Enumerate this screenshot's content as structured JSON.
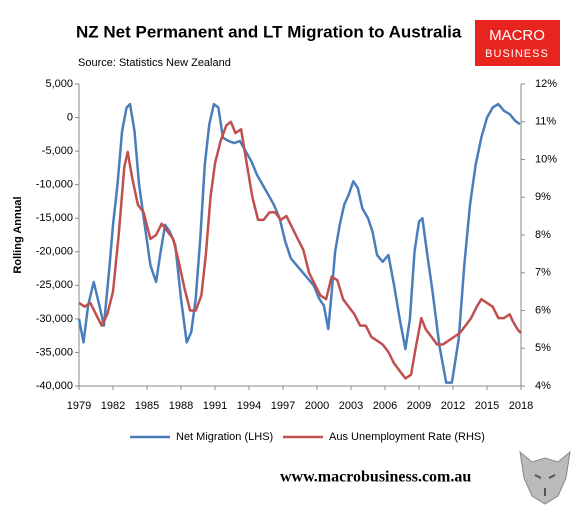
{
  "chart_data": {
    "type": "line",
    "title": "NZ Net Permanent and LT Migration to Australia",
    "subtitle": "Source: Statistics New Zealand",
    "ylabel": "Rolling Annual",
    "logo": [
      "MACRO",
      "BUSINESS"
    ],
    "footer": "www.macrobusiness.com.au",
    "xlim": [
      1979,
      2018
    ],
    "xticks": [
      1979,
      1982,
      1985,
      1988,
      1991,
      1994,
      1997,
      2000,
      2003,
      2006,
      2009,
      2012,
      2015,
      2018
    ],
    "ylim": [
      -40000,
      5000
    ],
    "yticks": [
      {
        "value": -40000,
        "label": "-40,000"
      },
      {
        "value": -35000,
        "label": "-35,000"
      },
      {
        "value": -30000,
        "label": "-30,000"
      },
      {
        "value": -25000,
        "label": "-25,000"
      },
      {
        "value": -20000,
        "label": "-20,000"
      },
      {
        "value": -15000,
        "label": "-15,000"
      },
      {
        "value": -10000,
        "label": "-10,000"
      },
      {
        "value": -5000,
        "label": "-5,000"
      },
      0,
      {
        "value": 5000,
        "label": "5,000"
      }
    ],
    "y2lim": [
      4,
      12
    ],
    "y2ticks": [
      {
        "value": 4,
        "label": "4%"
      },
      {
        "value": 5,
        "label": "5%"
      },
      {
        "value": 6,
        "label": "6%"
      },
      {
        "value": 7,
        "label": "7%"
      },
      {
        "value": 8,
        "label": "8%"
      },
      {
        "value": 9,
        "label": "9%"
      },
      {
        "value": 10,
        "label": "10%"
      },
      {
        "value": 11,
        "label": "11%"
      },
      {
        "value": 12,
        "label": "12%"
      }
    ],
    "series": [
      {
        "name": "Net Migration (LHS)",
        "color": "#4a7ebb",
        "axis": "y",
        "x": [
          1979.0,
          1979.4,
          1979.8,
          1980.3,
          1980.8,
          1981.2,
          1981.7,
          1982.0,
          1982.4,
          1982.8,
          1983.2,
          1983.5,
          1983.9,
          1984.3,
          1984.8,
          1985.3,
          1985.8,
          1986.2,
          1986.6,
          1987.0,
          1987.5,
          1988.0,
          1988.5,
          1988.9,
          1989.3,
          1989.7,
          1990.1,
          1990.5,
          1990.9,
          1991.3,
          1991.7,
          1992.2,
          1992.7,
          1993.2,
          1993.7,
          1994.2,
          1994.7,
          1995.2,
          1995.7,
          1996.2,
          1996.7,
          1997.2,
          1997.7,
          1998.2,
          1998.7,
          1999.2,
          1999.7,
          2000.2,
          2000.6,
          2001.0,
          2001.3,
          2001.6,
          2002.0,
          2002.4,
          2002.8,
          2003.2,
          2003.6,
          2004.0,
          2004.5,
          2004.9,
          2005.3,
          2005.8,
          2006.3,
          2006.8,
          2007.3,
          2007.8,
          2008.2,
          2008.6,
          2009.0,
          2009.3,
          2009.7,
          2010.2,
          2010.8,
          2011.4,
          2011.9,
          2012.5,
          2013.0,
          2013.5,
          2014.0,
          2014.5,
          2015.0,
          2015.5,
          2016.0,
          2016.5,
          2017.0,
          2017.5,
          2017.9
        ],
        "values": [
          -30000,
          -33500,
          -28000,
          -24500,
          -28000,
          -31000,
          -22000,
          -16000,
          -10000,
          -2000,
          1500,
          2000,
          -2000,
          -10000,
          -16000,
          -22000,
          -24500,
          -20000,
          -16000,
          -17000,
          -19000,
          -27000,
          -33500,
          -32000,
          -27000,
          -18000,
          -7000,
          -1000,
          2000,
          1500,
          -3000,
          -3500,
          -3800,
          -3500,
          -5000,
          -6500,
          -8500,
          -10000,
          -11500,
          -13000,
          -15000,
          -18500,
          -21000,
          -22000,
          -23000,
          -24000,
          -25000,
          -27000,
          -28000,
          -31500,
          -26000,
          -20000,
          -16000,
          -13000,
          -11500,
          -9500,
          -10500,
          -13500,
          -15000,
          -17000,
          -20500,
          -21500,
          -20500,
          -25000,
          -30000,
          -34500,
          -30000,
          -20000,
          -15500,
          -15000,
          -20000,
          -26000,
          -34000,
          -39500,
          -39500,
          -33000,
          -22000,
          -13000,
          -7000,
          -3000,
          0,
          1500,
          2000,
          1000,
          500,
          -500,
          -1000
        ]
      },
      {
        "name": "Aus Unemployment Rate (RHS)",
        "color": "#c0504d",
        "axis": "y2",
        "x": [
          1979.0,
          1979.5,
          1980.0,
          1980.5,
          1981.0,
          1981.5,
          1982.0,
          1982.5,
          1983.0,
          1983.3,
          1983.7,
          1984.2,
          1984.7,
          1985.3,
          1985.8,
          1986.3,
          1986.8,
          1987.3,
          1987.8,
          1988.3,
          1988.8,
          1989.3,
          1989.8,
          1990.2,
          1990.6,
          1991.0,
          1991.5,
          1992.0,
          1992.4,
          1992.8,
          1993.3,
          1993.8,
          1994.3,
          1994.8,
          1995.3,
          1995.8,
          1996.3,
          1996.8,
          1997.3,
          1997.8,
          1998.3,
          1998.8,
          1999.3,
          1999.8,
          2000.3,
          2000.8,
          2001.3,
          2001.8,
          2002.3,
          2002.8,
          2003.3,
          2003.8,
          2004.3,
          2004.8,
          2005.3,
          2005.8,
          2006.3,
          2006.8,
          2007.3,
          2007.8,
          2008.3,
          2008.7,
          2009.2,
          2009.6,
          2010.1,
          2010.6,
          2011.1,
          2011.6,
          2012.1,
          2012.6,
          2013.1,
          2013.6,
          2014.1,
          2014.5,
          2015.0,
          2015.5,
          2016.0,
          2016.5,
          2017.0,
          2017.3,
          2017.7,
          2018.0
        ],
        "values": [
          6.2,
          6.1,
          6.2,
          5.9,
          5.6,
          5.9,
          6.5,
          8.0,
          9.8,
          10.2,
          9.5,
          8.8,
          8.6,
          7.9,
          8.0,
          8.3,
          8.1,
          7.9,
          7.3,
          6.6,
          6.0,
          6.0,
          6.4,
          7.5,
          9.0,
          9.9,
          10.5,
          10.9,
          11.0,
          10.7,
          10.8,
          9.9,
          9.0,
          8.4,
          8.4,
          8.6,
          8.6,
          8.4,
          8.5,
          8.2,
          7.9,
          7.6,
          7.0,
          6.7,
          6.4,
          6.3,
          6.9,
          6.8,
          6.3,
          6.1,
          5.9,
          5.6,
          5.6,
          5.3,
          5.2,
          5.1,
          4.9,
          4.6,
          4.4,
          4.2,
          4.3,
          5.0,
          5.8,
          5.5,
          5.3,
          5.1,
          5.1,
          5.2,
          5.3,
          5.4,
          5.6,
          5.8,
          6.1,
          6.3,
          6.2,
          6.1,
          5.8,
          5.8,
          5.9,
          5.7,
          5.5,
          5.4
        ]
      }
    ]
  }
}
